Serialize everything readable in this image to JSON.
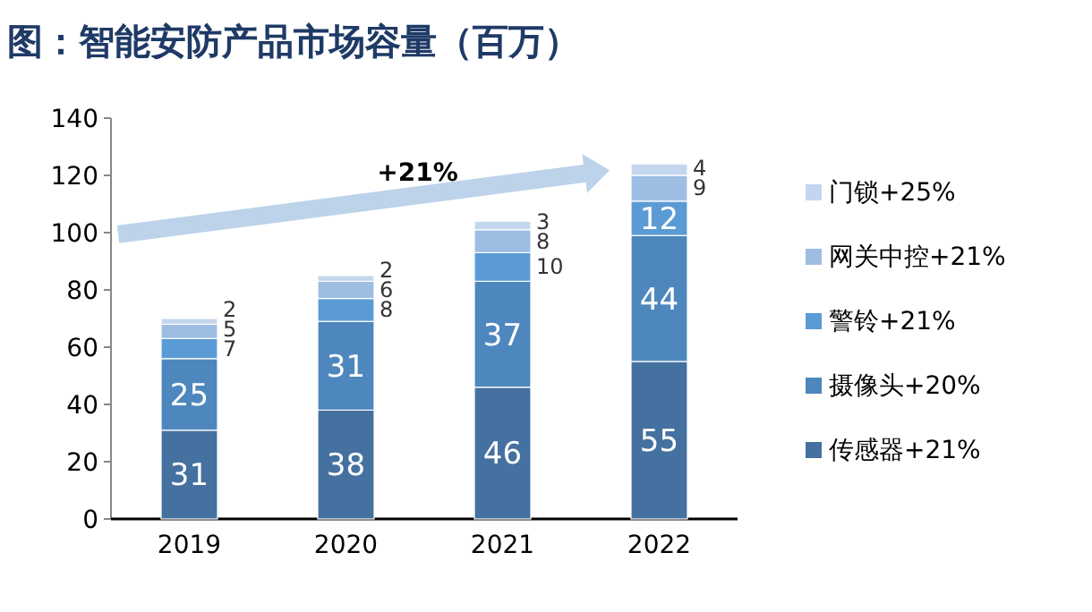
{
  "chart_data": {
    "type": "bar",
    "stacked": true,
    "title": "图：智能安防产品市场容量（百万）",
    "categories": [
      "2019",
      "2020",
      "2021",
      "2022"
    ],
    "series": [
      {
        "name": "传感器+21%",
        "color": "#44719f",
        "values": [
          31,
          38,
          46,
          55
        ]
      },
      {
        "name": "摄像头+20%",
        "color": "#4e87bd",
        "values": [
          25,
          31,
          37,
          44
        ]
      },
      {
        "name": "警铃+21%",
        "color": "#5b9bd5",
        "values": [
          7,
          8,
          10,
          12
        ]
      },
      {
        "name": "网关中控+21%",
        "color": "#9dbde3",
        "values": [
          5,
          6,
          8,
          9
        ]
      },
      {
        "name": "门锁+25%",
        "color": "#c3d6ee",
        "values": [
          2,
          2,
          3,
          4
        ]
      }
    ],
    "ylim": [
      0,
      140
    ],
    "yticks": [
      0,
      20,
      40,
      60,
      80,
      100,
      120,
      140
    ],
    "data_labels": true,
    "legend": "right",
    "grid": false,
    "annotations": [
      "+21%"
    ]
  }
}
